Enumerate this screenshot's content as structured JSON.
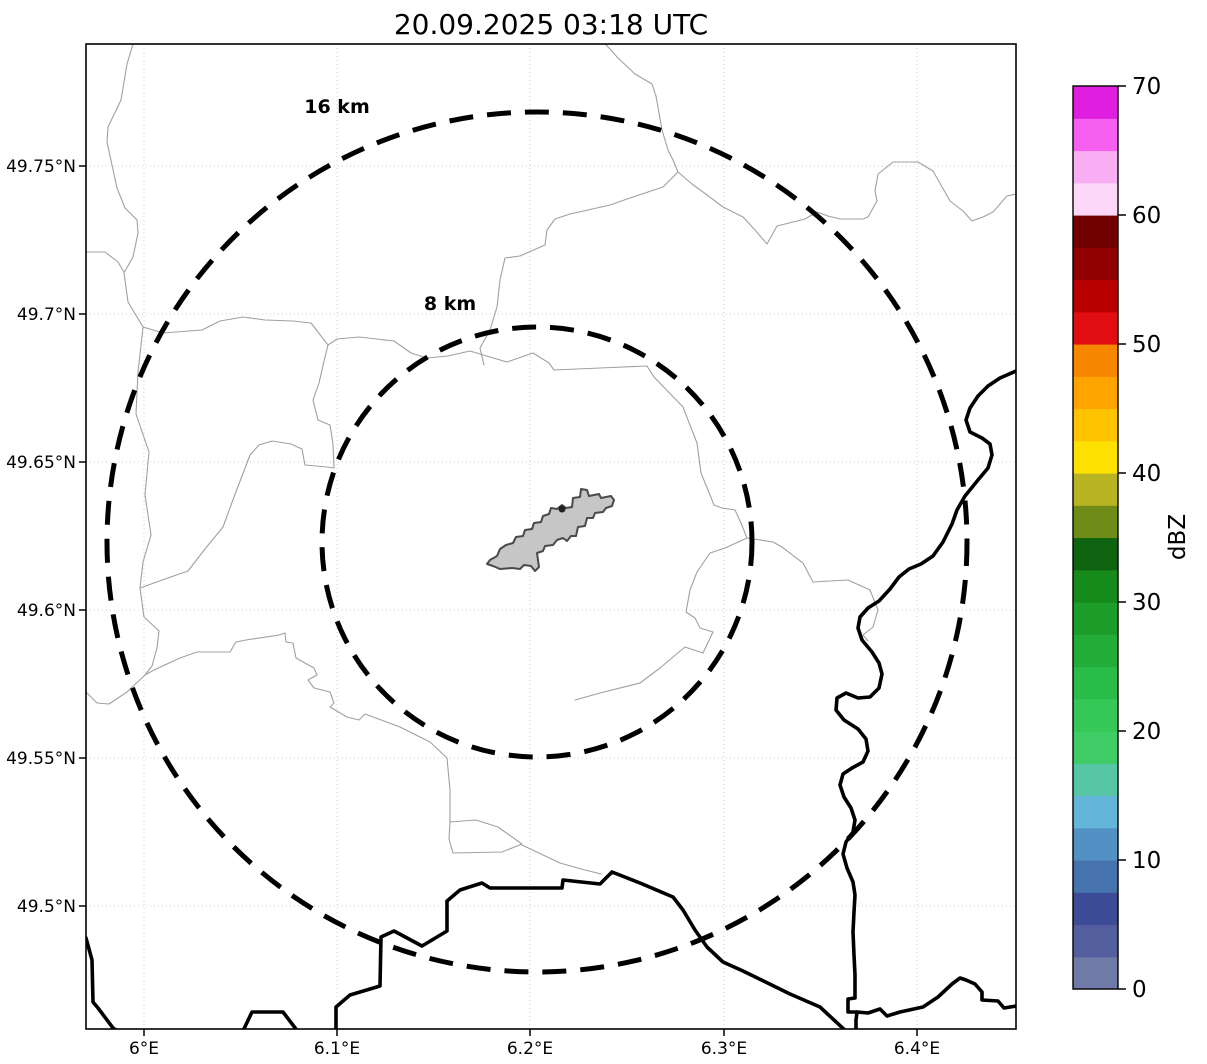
{
  "title": "20.09.2025 03:18 UTC",
  "map": {
    "x_ticks": [
      "6°E",
      "6.1°E",
      "6.2°E",
      "6.3°E",
      "6.4°E"
    ],
    "y_ticks": [
      "49.75°N",
      "49.7°N",
      "49.65°N",
      "49.6°N",
      "49.55°N",
      "49.5°N"
    ],
    "range_rings": [
      {
        "label": "16 km",
        "radius_km": 16
      },
      {
        "label": "8 km",
        "radius_km": 8
      }
    ]
  },
  "colorbar": {
    "label": "dBZ",
    "min": 0,
    "max": 70,
    "tick_labels": [
      "70",
      "60",
      "50",
      "40",
      "30",
      "20",
      "10",
      "0"
    ],
    "segment_colors": [
      "#6f7aa6",
      "#525e9e",
      "#3c4c96",
      "#4672ae",
      "#5391c5",
      "#63b5da",
      "#57c6a4",
      "#3fcb66",
      "#35c857",
      "#2abc48",
      "#22ad38",
      "#1d9e2a",
      "#178a1c",
      "#0f6310",
      "#6f8b18",
      "#b7b322",
      "#ffe100",
      "#ffc400",
      "#ffa400",
      "#f88700",
      "#e00e10",
      "#b80000",
      "#8f0000",
      "#700000",
      "#fcd7f8",
      "#f8aef2",
      "#f660f0",
      "#e01ee0"
    ]
  },
  "colors": {
    "background": "#ffffff",
    "grid": "#cfcfcf",
    "admin_lines": "#a0a0a0",
    "border_lines": "#000000",
    "range_ring": "#000000",
    "airport_fill": "#c6c6c6",
    "airport_outline": "#4a4a4a"
  }
}
